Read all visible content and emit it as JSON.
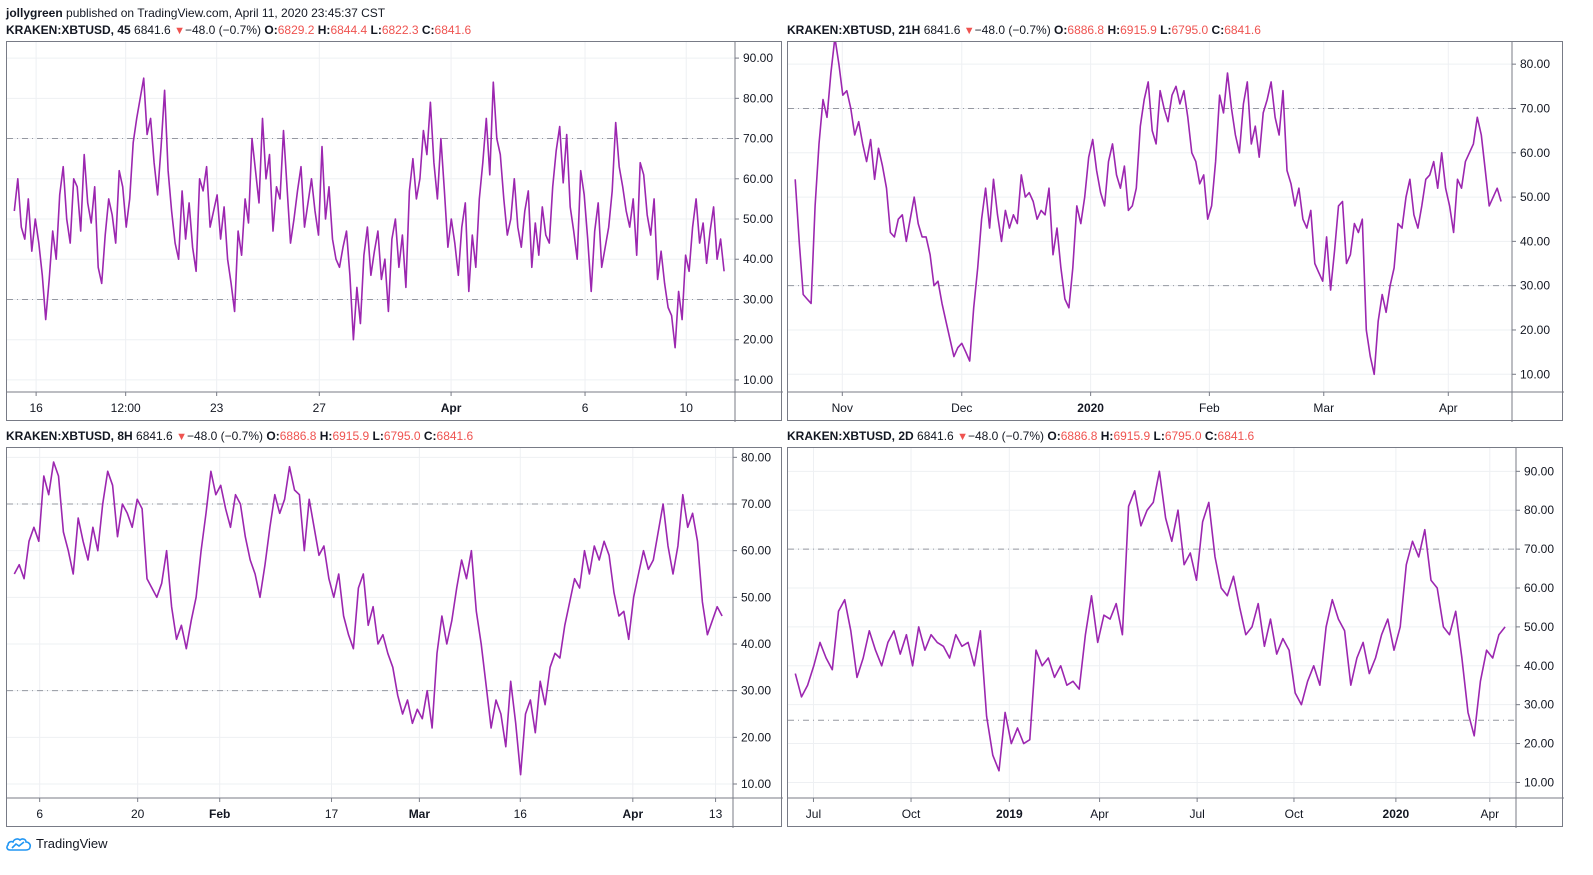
{
  "publisher": {
    "user": "jollygreen",
    "text": "published on TradingView.com, April 11, 2020 23:45:37 CST"
  },
  "brand": {
    "name": "TradingView"
  },
  "colors": {
    "series": "#9c27b0",
    "down": "#ef5350",
    "grid": "#eef0f3",
    "border": "#787b86",
    "level": "#9598a1"
  },
  "panels": [
    {
      "symbol": "KRAKEN:XBTUSD, 45",
      "price": "6841.6",
      "arrow": "▼",
      "change": "−48.0 (−0.7%)",
      "o_label": "O:",
      "o": "6829.2",
      "h_label": "H:",
      "h": "6844.4",
      "l_label": "L:",
      "l": "6822.3",
      "c_label": "C:",
      "c": "6841.6"
    },
    {
      "symbol": "KRAKEN:XBTUSD, 21H",
      "price": "6841.6",
      "arrow": "▼",
      "change": "−48.0 (−0.7%)",
      "o_label": "O:",
      "o": "6886.8",
      "h_label": "H:",
      "h": "6915.9",
      "l_label": "L:",
      "l": "6795.0",
      "c_label": "C:",
      "c": "6841.6"
    },
    {
      "symbol": "KRAKEN:XBTUSD, 8H",
      "price": "6841.6",
      "arrow": "▼",
      "change": "−48.0 (−0.7%)",
      "o_label": "O:",
      "o": "6886.8",
      "h_label": "H:",
      "h": "6915.9",
      "l_label": "L:",
      "l": "6795.0",
      "c_label": "C:",
      "c": "6841.6"
    },
    {
      "symbol": "KRAKEN:XBTUSD, 2D",
      "price": "6841.6",
      "arrow": "▼",
      "change": "−48.0 (−0.7%)",
      "o_label": "O:",
      "o": "6886.8",
      "h_label": "H:",
      "h": "6915.9",
      "l_label": "L:",
      "l": "6795.0",
      "c_label": "C:",
      "c": "6841.6"
    }
  ],
  "chart_data": [
    {
      "type": "line",
      "title": "KRAKEN:XBTUSD, 45",
      "ylim": [
        7,
        94
      ],
      "yticks": [
        "10.00",
        "20.00",
        "30.00",
        "40.00",
        "50.00",
        "60.00",
        "70.00",
        "80.00",
        "90.00"
      ],
      "levels": [
        30,
        70
      ],
      "xlim": [
        0,
        100
      ],
      "xticks": [
        {
          "label": "16",
          "pos": 4,
          "bold": false
        },
        {
          "label": "12:00",
          "pos": 16.3,
          "bold": false
        },
        {
          "label": "23",
          "pos": 28.8,
          "bold": false
        },
        {
          "label": "27",
          "pos": 42.9,
          "bold": false
        },
        {
          "label": "Apr",
          "pos": 61,
          "bold": true
        },
        {
          "label": "6",
          "pos": 79.4,
          "bold": false
        },
        {
          "label": "10",
          "pos": 93.3,
          "bold": false
        }
      ],
      "series": [
        {
          "values": [
            52,
            60,
            48,
            45,
            55,
            42,
            50,
            44,
            36,
            25,
            35,
            47,
            40,
            56,
            63,
            50,
            44,
            60,
            58,
            47,
            66,
            54,
            49,
            58,
            38,
            34,
            46,
            55,
            51,
            44,
            62,
            58,
            48,
            55,
            69,
            75,
            80,
            85,
            71,
            75,
            64,
            56,
            68,
            82,
            62,
            52,
            44,
            40,
            57,
            45,
            54,
            43,
            37,
            60,
            57,
            63,
            48,
            52,
            56,
            45,
            53,
            40,
            34,
            27,
            47,
            41,
            55,
            49,
            70,
            62,
            54,
            75,
            60,
            66,
            47,
            58,
            55,
            72,
            58,
            44,
            50,
            57,
            63,
            48,
            54,
            60,
            52,
            46,
            68,
            50,
            58,
            45,
            40,
            38,
            43,
            47,
            36,
            20,
            33,
            24,
            41,
            48,
            36,
            42,
            47,
            35,
            40,
            27,
            45,
            50,
            38,
            46,
            33,
            57,
            65,
            55,
            60,
            72,
            66,
            79,
            64,
            55,
            70,
            57,
            43,
            50,
            44,
            36,
            48,
            54,
            32,
            46,
            38,
            55,
            64,
            75,
            61,
            84,
            70,
            66,
            55,
            46,
            50,
            60,
            48,
            43,
            52,
            57,
            38,
            49,
            41,
            53,
            46,
            44,
            58,
            67,
            73,
            59,
            71,
            53,
            47,
            40,
            62,
            56,
            45,
            32,
            47,
            54,
            38,
            43,
            48,
            57,
            74,
            63,
            58,
            52,
            48,
            55,
            41,
            64,
            61,
            51,
            46,
            55,
            35,
            42,
            34,
            28,
            26,
            18,
            32,
            25,
            41,
            37,
            48,
            55,
            44,
            49,
            39,
            47,
            53,
            40,
            45,
            37
          ]
        }
      ]
    },
    {
      "type": "line",
      "title": "KRAKEN:XBTUSD, 21H",
      "ylim": [
        6,
        85
      ],
      "yticks": [
        "10.00",
        "20.00",
        "30.00",
        "40.00",
        "50.00",
        "60.00",
        "70.00",
        "80.00"
      ],
      "levels": [
        30,
        70
      ],
      "xlim": [
        0,
        100
      ],
      "xticks": [
        {
          "label": "Nov",
          "pos": 7.5,
          "bold": false
        },
        {
          "label": "Dec",
          "pos": 24,
          "bold": false
        },
        {
          "label": "2020",
          "pos": 41.8,
          "bold": true
        },
        {
          "label": "Feb",
          "pos": 58.2,
          "bold": false
        },
        {
          "label": "Mar",
          "pos": 74,
          "bold": false
        },
        {
          "label": "Apr",
          "pos": 91.2,
          "bold": false
        }
      ],
      "series": [
        {
          "values": [
            54,
            40,
            28,
            27,
            26,
            48,
            62,
            72,
            68,
            78,
            86,
            80,
            73,
            74,
            70,
            64,
            67,
            62,
            58,
            63,
            54,
            61,
            57,
            52,
            42,
            41,
            45,
            46,
            40,
            45,
            50,
            44,
            41,
            41,
            37,
            30,
            31,
            26,
            22,
            18,
            14,
            16,
            17,
            15,
            13,
            25,
            34,
            45,
            52,
            43,
            54,
            46,
            40,
            47,
            43,
            46,
            44,
            55,
            50,
            51,
            49,
            45,
            47,
            46,
            52,
            37,
            43,
            34,
            27,
            25,
            34,
            48,
            44,
            50,
            59,
            63,
            56,
            51,
            48,
            58,
            62,
            55,
            52,
            57,
            47,
            48,
            52,
            66,
            72,
            76,
            65,
            62,
            74,
            70,
            67,
            73,
            75,
            71,
            74,
            68,
            60,
            58,
            53,
            55,
            45,
            48,
            58,
            73,
            69,
            78,
            70,
            64,
            60,
            71,
            76,
            62,
            66,
            59,
            69,
            72,
            76,
            68,
            64,
            74,
            56,
            53,
            48,
            52,
            45,
            43,
            47,
            35,
            33,
            31,
            41,
            29,
            38,
            48,
            49,
            35,
            37,
            44,
            42,
            45,
            20,
            14,
            10,
            22,
            28,
            24,
            30,
            34,
            44,
            43,
            50,
            54,
            46,
            43,
            48,
            54,
            55,
            58,
            52,
            60,
            52,
            48,
            42,
            54,
            52,
            58,
            60,
            62,
            68,
            64,
            56,
            48,
            50,
            52,
            49
          ]
        }
      ]
    },
    {
      "type": "line",
      "title": "KRAKEN:XBTUSD, 8H",
      "ylim": [
        7,
        82
      ],
      "yticks": [
        "10.00",
        "20.00",
        "30.00",
        "40.00",
        "50.00",
        "60.00",
        "70.00",
        "80.00"
      ],
      "levels": [
        30,
        70
      ],
      "xlim": [
        0,
        100
      ],
      "xticks": [
        {
          "label": "6",
          "pos": 4.5,
          "bold": false
        },
        {
          "label": "20",
          "pos": 18,
          "bold": false
        },
        {
          "label": "Feb",
          "pos": 29.3,
          "bold": true
        },
        {
          "label": "17",
          "pos": 44.7,
          "bold": false
        },
        {
          "label": "Mar",
          "pos": 56.8,
          "bold": true
        },
        {
          "label": "16",
          "pos": 70.7,
          "bold": false
        },
        {
          "label": "Apr",
          "pos": 86.2,
          "bold": true
        },
        {
          "label": "13",
          "pos": 97.6,
          "bold": false
        }
      ],
      "series": [
        {
          "values": [
            55,
            57,
            54,
            62,
            65,
            62,
            76,
            72,
            79,
            76,
            64,
            60,
            55,
            67,
            62,
            58,
            65,
            60,
            70,
            77,
            74,
            63,
            70,
            68,
            65,
            71,
            69,
            54,
            52,
            50,
            53,
            60,
            48,
            41,
            44,
            39,
            45,
            50,
            60,
            68,
            77,
            72,
            74,
            69,
            65,
            72,
            70,
            63,
            58,
            55,
            50,
            57,
            65,
            72,
            68,
            71,
            78,
            73,
            72,
            60,
            71,
            65,
            59,
            61,
            54,
            50,
            55,
            46,
            42,
            39,
            52,
            55,
            44,
            48,
            40,
            42,
            38,
            35,
            29,
            25,
            28,
            23,
            26,
            24,
            30,
            22,
            38,
            46,
            40,
            45,
            52,
            58,
            54,
            60,
            47,
            40,
            31,
            22,
            28,
            25,
            18,
            32,
            23,
            12,
            25,
            28,
            21,
            32,
            27,
            35,
            38,
            37,
            44,
            49,
            54,
            52,
            60,
            55,
            61,
            58,
            62,
            59,
            51,
            46,
            47,
            41,
            50,
            55,
            60,
            56,
            58,
            64,
            70,
            61,
            55,
            61,
            72,
            65,
            68,
            62,
            49,
            42,
            45,
            48,
            46
          ]
        }
      ]
    },
    {
      "type": "line",
      "title": "KRAKEN:XBTUSD, 2D",
      "ylim": [
        6,
        96
      ],
      "yticks": [
        "10.00",
        "20.00",
        "30.00",
        "40.00",
        "50.00",
        "60.00",
        "70.00",
        "80.00",
        "90.00"
      ],
      "levels": [
        26,
        70
      ],
      "xlim": [
        0,
        100
      ],
      "xticks": [
        {
          "label": "Jul",
          "pos": 3.5,
          "bold": false
        },
        {
          "label": "Oct",
          "pos": 16.9,
          "bold": false
        },
        {
          "label": "2019",
          "pos": 30.4,
          "bold": true
        },
        {
          "label": "Apr",
          "pos": 42.8,
          "bold": false
        },
        {
          "label": "Jul",
          "pos": 56.2,
          "bold": false
        },
        {
          "label": "Oct",
          "pos": 69.5,
          "bold": false
        },
        {
          "label": "2020",
          "pos": 83.5,
          "bold": true
        },
        {
          "label": "Apr",
          "pos": 96.4,
          "bold": false
        }
      ],
      "series": [
        {
          "values": [
            38,
            32,
            35,
            40,
            46,
            42,
            39,
            54,
            57,
            49,
            37,
            42,
            49,
            44,
            40,
            46,
            49,
            43,
            48,
            40,
            50,
            44,
            48,
            46,
            45,
            42,
            48,
            45,
            46,
            40,
            49,
            27,
            17,
            13,
            28,
            20,
            24,
            20,
            21,
            44,
            40,
            42,
            37,
            40,
            35,
            36,
            34,
            48,
            58,
            46,
            53,
            52,
            56,
            48,
            81,
            85,
            76,
            80,
            82,
            90,
            78,
            72,
            80,
            66,
            69,
            62,
            77,
            82,
            68,
            60,
            58,
            63,
            55,
            48,
            50,
            56,
            45,
            52,
            43,
            47,
            44,
            33,
            30,
            36,
            40,
            35,
            50,
            57,
            52,
            49,
            35,
            42,
            46,
            38,
            42,
            48,
            52,
            44,
            50,
            66,
            72,
            68,
            75,
            62,
            60,
            50,
            48,
            54,
            42,
            28,
            22,
            36,
            44,
            42,
            48,
            50
          ]
        }
      ]
    }
  ]
}
